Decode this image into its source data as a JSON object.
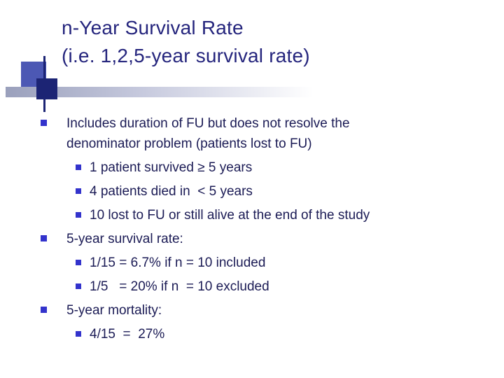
{
  "slide": {
    "title": {
      "line1": "n-Year Survival Rate",
      "line2": "(i.e. 1,2,5-year survival rate)"
    },
    "body": {
      "items": [
        {
          "level": 1,
          "text": "Includes duration of FU but does not resolve the denominator problem (patients lost to FU)"
        },
        {
          "level": 2,
          "text": "1 patient survived ≥ 5 years"
        },
        {
          "level": 2,
          "text": "4 patients died in  < 5 years"
        },
        {
          "level": 2,
          "text": "10 lost to FU or still alive at the end of the study"
        },
        {
          "level": 1,
          "text": "5-year survival rate:"
        },
        {
          "level": 2,
          "text": "1/15 = 6.7% if n = 10 included"
        },
        {
          "level": 2,
          "text": "1/5   = 20% if n  = 10 excluded"
        },
        {
          "level": 1,
          "text": "5-year mortality:"
        },
        {
          "level": 2,
          "text": "4/15  =  27%"
        }
      ]
    },
    "colors": {
      "title": "#25257d",
      "body_text": "#1b1b55",
      "bullet": "#3333cc",
      "accent_light_square": "#4c58b4",
      "accent_dark_square": "#1c2474",
      "gradient_bar_start": "#9aa0bc"
    }
  }
}
